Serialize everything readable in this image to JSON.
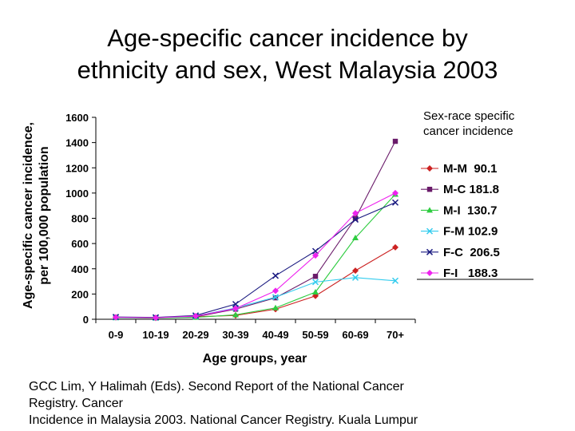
{
  "slide": {
    "title_lines": [
      "Age-specific cancer incidence by",
      "ethnicity and sex, West Malaysia 2003"
    ],
    "footnote_lines": [
      "GCC Lim, Y Halimah (Eds). Second Report of the National Cancer",
      "Registry. Cancer",
      "Incidence in Malaysia 2003. National Cancer Registry. Kuala Lumpur"
    ]
  },
  "chart_data": {
    "type": "line",
    "title": "",
    "legend_title_lines": [
      "Sex-race specific",
      "cancer incidence"
    ],
    "xlabel": "Age groups, year",
    "ylabel_lines": [
      "Age-specific cancer incidence,",
      "per 100,000 population"
    ],
    "categories": [
      "0-9",
      "10-19",
      "20-29",
      "30-39",
      "40-49",
      "50-59",
      "60-69",
      "70+"
    ],
    "ylim": [
      0,
      1600
    ],
    "yticks": [
      0,
      200,
      400,
      600,
      800,
      1000,
      1200,
      1400,
      1600
    ],
    "grid": false,
    "legend_position": "right",
    "series": [
      {
        "name": "M-M  90.1",
        "color": "#cc2222",
        "marker": "diamond",
        "values": [
          15,
          10,
          20,
          30,
          80,
          185,
          385,
          570
        ]
      },
      {
        "name": "M-C 181.8",
        "color": "#6a1b6a",
        "marker": "square",
        "values": [
          15,
          12,
          20,
          80,
          170,
          340,
          800,
          1410
        ]
      },
      {
        "name": "M-I  130.7",
        "color": "#2ecc40",
        "marker": "triangle",
        "values": [
          12,
          10,
          15,
          35,
          90,
          215,
          645,
          990
        ]
      },
      {
        "name": "F-M 102.9",
        "color": "#33ccee",
        "marker": "x",
        "values": [
          15,
          12,
          25,
          90,
          175,
          295,
          330,
          305
        ]
      },
      {
        "name": "F-C  206.5",
        "color": "#1a1a80",
        "marker": "x",
        "values": [
          18,
          15,
          30,
          120,
          345,
          540,
          790,
          925
        ]
      },
      {
        "name": "F-I   188.3",
        "color": "#ee22ee",
        "marker": "diamond",
        "values": [
          15,
          12,
          25,
          85,
          225,
          505,
          840,
          1000
        ]
      }
    ]
  }
}
